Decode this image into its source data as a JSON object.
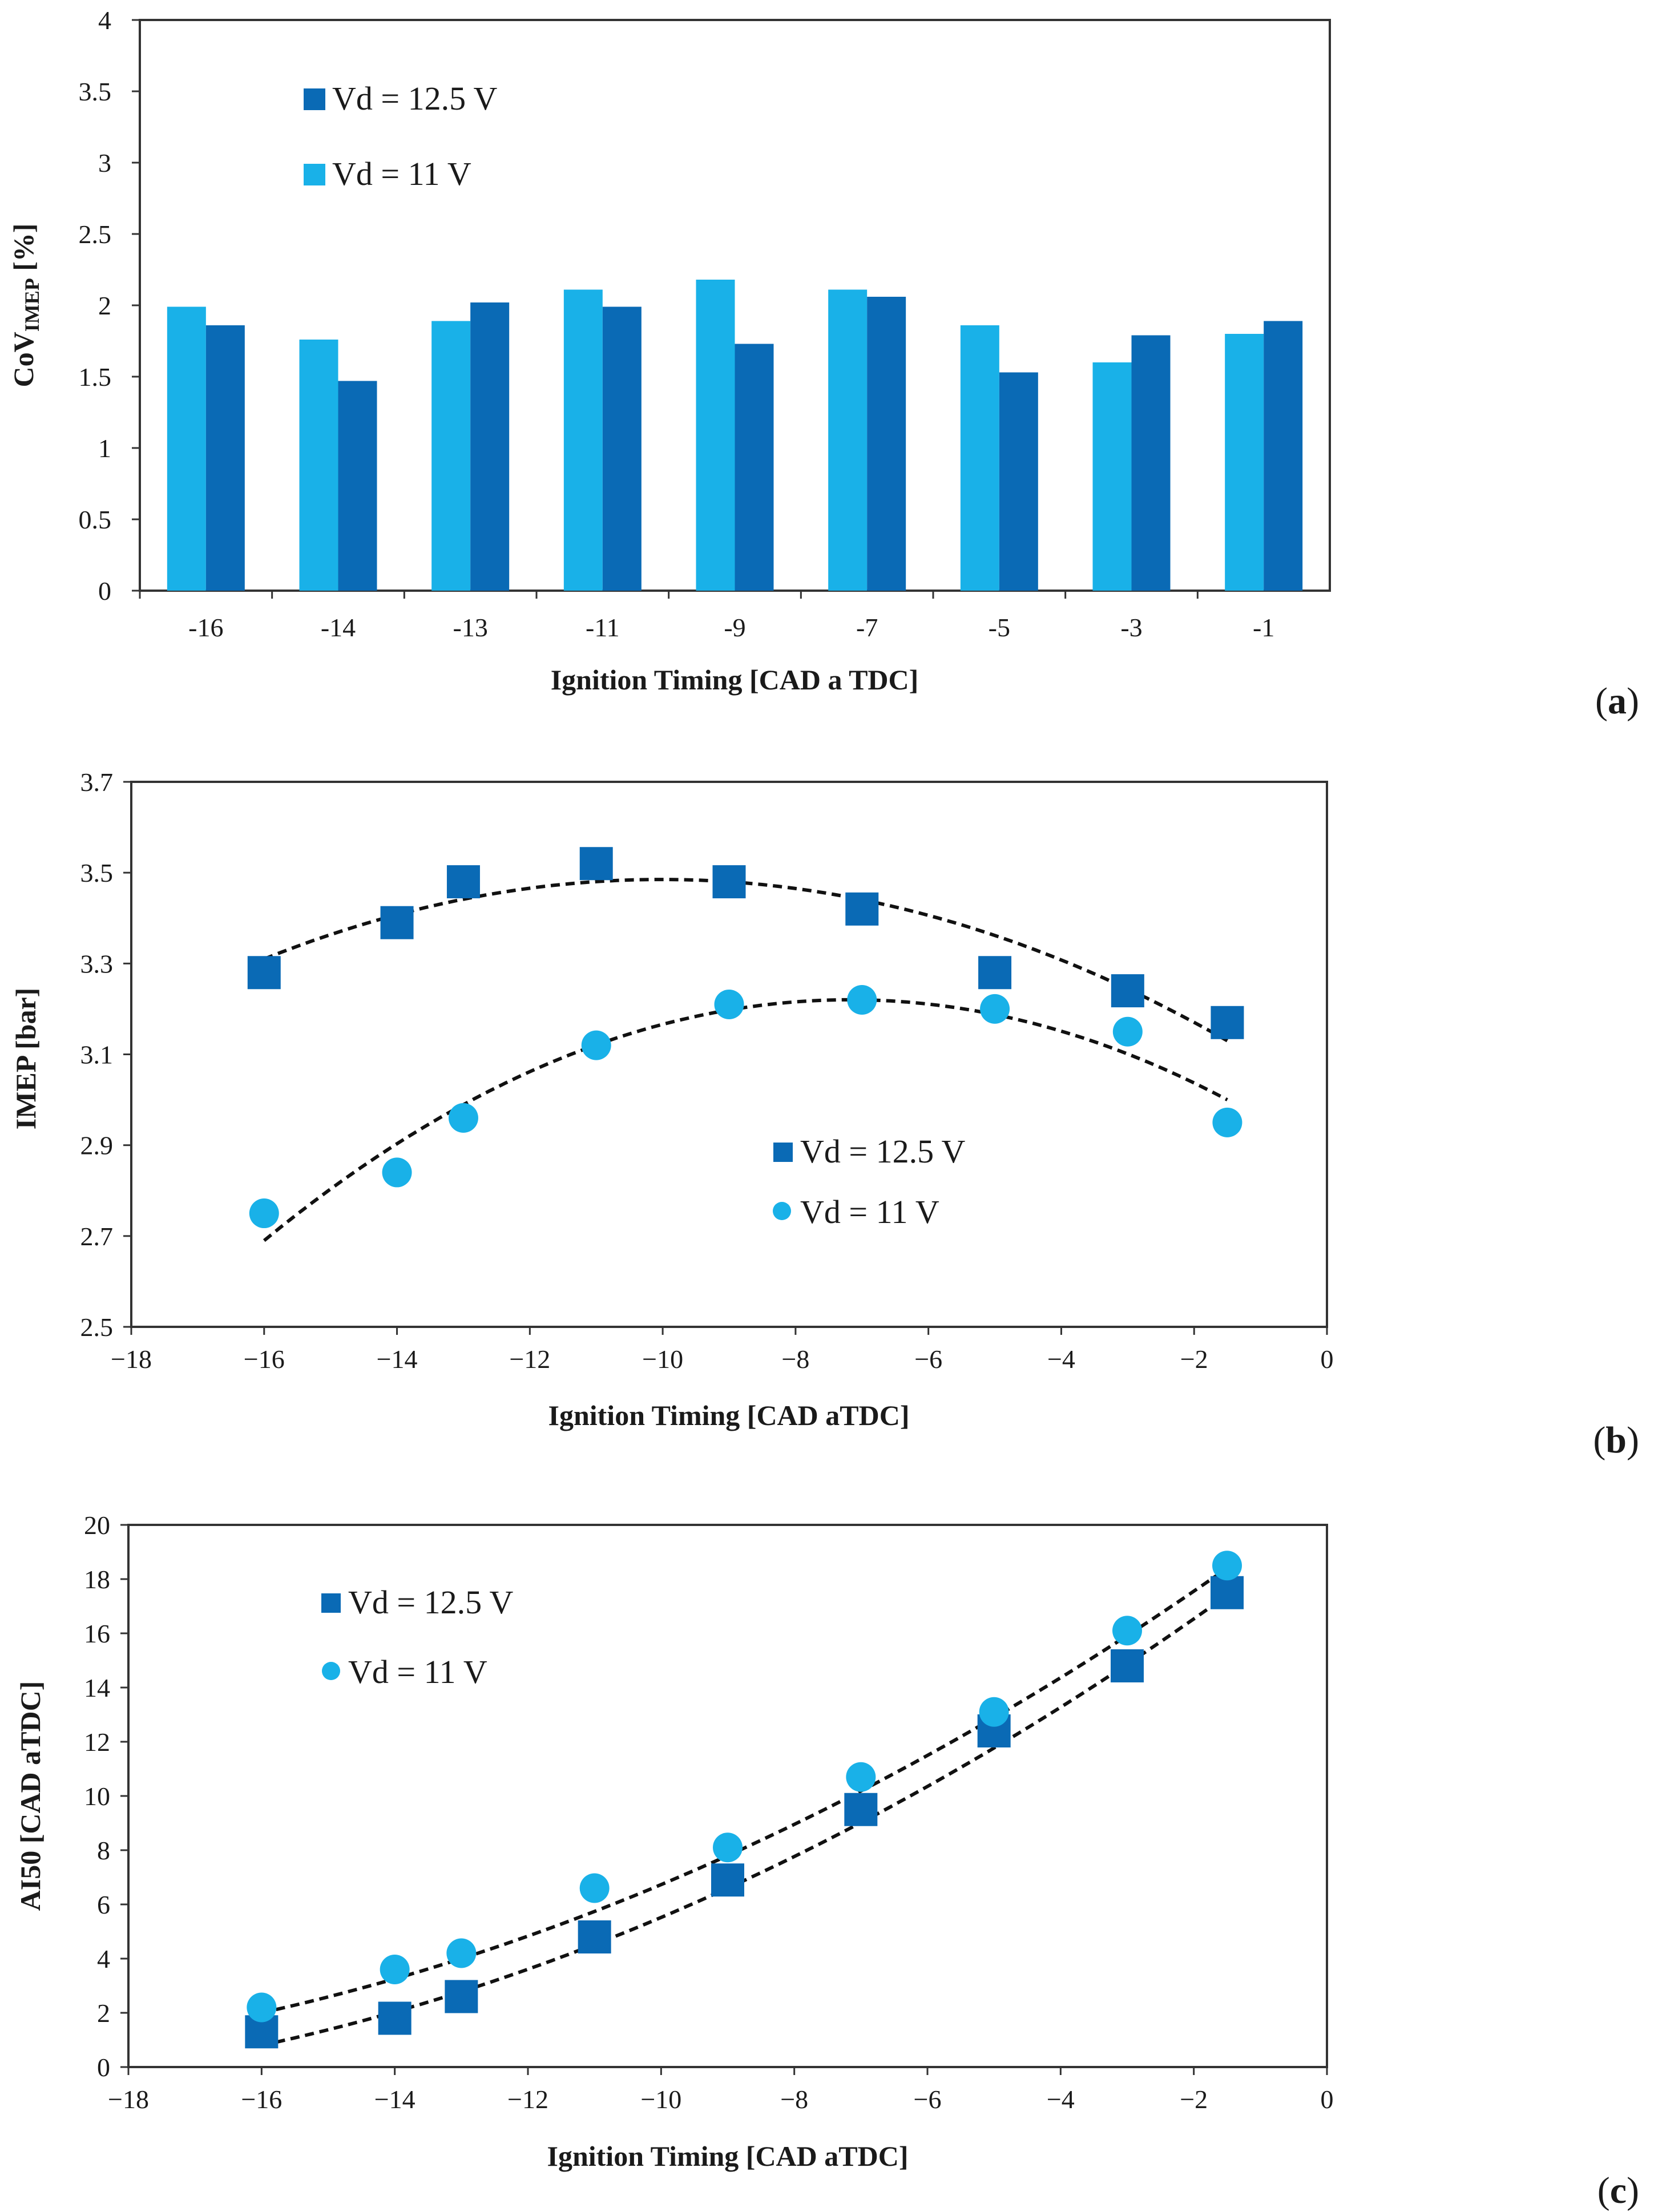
{
  "colors": {
    "vd125": "#0a6ab5",
    "vd11": "#19b1e8",
    "fit": "#111111",
    "axis": "#333333"
  },
  "panels": [
    {
      "tag_open": "(",
      "tag_letter": "a",
      "tag_close": ")"
    },
    {
      "tag_open": "(",
      "tag_letter": "b",
      "tag_close": ")"
    },
    {
      "tag_open": "(",
      "tag_letter": "c",
      "tag_close": ")"
    }
  ],
  "chart_data": [
    {
      "type": "bar",
      "categories": [
        "-16",
        "-14",
        "-13",
        "-11",
        "-9",
        "-7",
        "-5",
        "-3",
        "-1"
      ],
      "series": [
        {
          "name": "Vd = 11 V",
          "values": [
            1.99,
            1.76,
            1.89,
            2.11,
            2.18,
            2.11,
            1.86,
            1.6,
            1.8
          ]
        },
        {
          "name": "Vd = 12.5 V",
          "values": [
            1.86,
            1.47,
            2.02,
            1.99,
            1.73,
            2.06,
            1.53,
            1.79,
            1.89
          ]
        }
      ],
      "legend": [
        "Vd = 12.5 V",
        "Vd = 11 V"
      ],
      "xlabel": "Ignition Timing [CAD a TDC]",
      "ylabel_main": "CoV",
      "ylabel_sub": "IMEP",
      "ylabel_unit": " [%]",
      "ylim": [
        0,
        4
      ],
      "yticks": [
        "0",
        "0.5",
        "1",
        "1.5",
        "2",
        "2.5",
        "3",
        "3.5",
        "4"
      ],
      "legend_position": "top-left"
    },
    {
      "type": "scatter",
      "series": [
        {
          "name": "Vd = 12.5 V",
          "marker": "square",
          "x": [
            -16,
            -14,
            -13,
            -11,
            -9,
            -7,
            -5,
            -3,
            -1.5
          ],
          "y": [
            3.28,
            3.39,
            3.48,
            3.52,
            3.48,
            3.42,
            3.28,
            3.24,
            3.17
          ]
        },
        {
          "name": "Vd = 11 V",
          "marker": "circle",
          "x": [
            -16,
            -14,
            -13,
            -11,
            -9,
            -7,
            -5,
            -3,
            -1.5
          ],
          "y": [
            2.75,
            2.84,
            2.96,
            3.12,
            3.21,
            3.22,
            3.2,
            3.15,
            2.95
          ]
        }
      ],
      "trendlines": [
        {
          "series": "Vd = 12.5 V",
          "kind": "quadratic",
          "x": [
            -16,
            -9,
            -1.5
          ],
          "y": [
            3.31,
            3.48,
            3.13
          ]
        },
        {
          "series": "Vd = 11 V",
          "kind": "quadratic",
          "x": [
            -16,
            -7,
            -1.5
          ],
          "y": [
            2.69,
            3.22,
            3.0
          ]
        }
      ],
      "legend": [
        "Vd = 12.5 V",
        "Vd = 11 V"
      ],
      "xlabel": "Ignition Timing  [CAD aTDC]",
      "ylabel": "IMEP  [bar]",
      "xlim": [
        -18,
        0
      ],
      "ylim": [
        2.5,
        3.7
      ],
      "xticks": [
        "−18",
        "−16",
        "−14",
        "−12",
        "−10",
        "−8",
        "−6",
        "−4",
        "−2",
        "0"
      ],
      "yticks": [
        "2.5",
        "2.7",
        "2.9",
        "3.1",
        "3.3",
        "3.5",
        "3.7"
      ],
      "legend_position": "center-right"
    },
    {
      "type": "scatter",
      "series": [
        {
          "name": "Vd = 12.5 V",
          "marker": "square",
          "x": [
            -16,
            -14,
            -13,
            -11,
            -9,
            -7,
            -5,
            -3,
            -1.5
          ],
          "y": [
            1.3,
            1.8,
            2.6,
            4.8,
            6.9,
            9.5,
            12.4,
            14.8,
            17.5
          ]
        },
        {
          "name": "Vd = 11 V",
          "marker": "circle",
          "x": [
            -16,
            -14,
            -13,
            -11,
            -9,
            -7,
            -5,
            -3,
            -1.5
          ],
          "y": [
            2.2,
            3.6,
            4.2,
            6.6,
            8.1,
            10.7,
            13.1,
            16.1,
            18.5
          ]
        }
      ],
      "trendlines": [
        {
          "series": "Vd = 12.5 V",
          "kind": "quadratic",
          "x": [
            -16,
            -9,
            -1.5
          ],
          "y": [
            0.8,
            6.6,
            17.4
          ]
        },
        {
          "series": "Vd = 11 V",
          "kind": "quadratic",
          "x": [
            -16,
            -9,
            -1.5
          ],
          "y": [
            2.0,
            7.8,
            18.4
          ]
        }
      ],
      "legend": [
        "Vd = 12.5 V",
        "Vd = 11 V"
      ],
      "xlabel": "Ignition Timing  [CAD aTDC]",
      "ylabel": "AI50  [CAD aTDC]",
      "xlim": [
        -18,
        0
      ],
      "ylim": [
        0,
        20
      ],
      "xticks": [
        "−18",
        "−16",
        "−14",
        "−12",
        "−10",
        "−8",
        "−6",
        "−4",
        "−2",
        "0"
      ],
      "yticks": [
        "0",
        "2",
        "4",
        "6",
        "8",
        "10",
        "12",
        "14",
        "16",
        "18",
        "20"
      ],
      "legend_position": "top-left"
    }
  ]
}
